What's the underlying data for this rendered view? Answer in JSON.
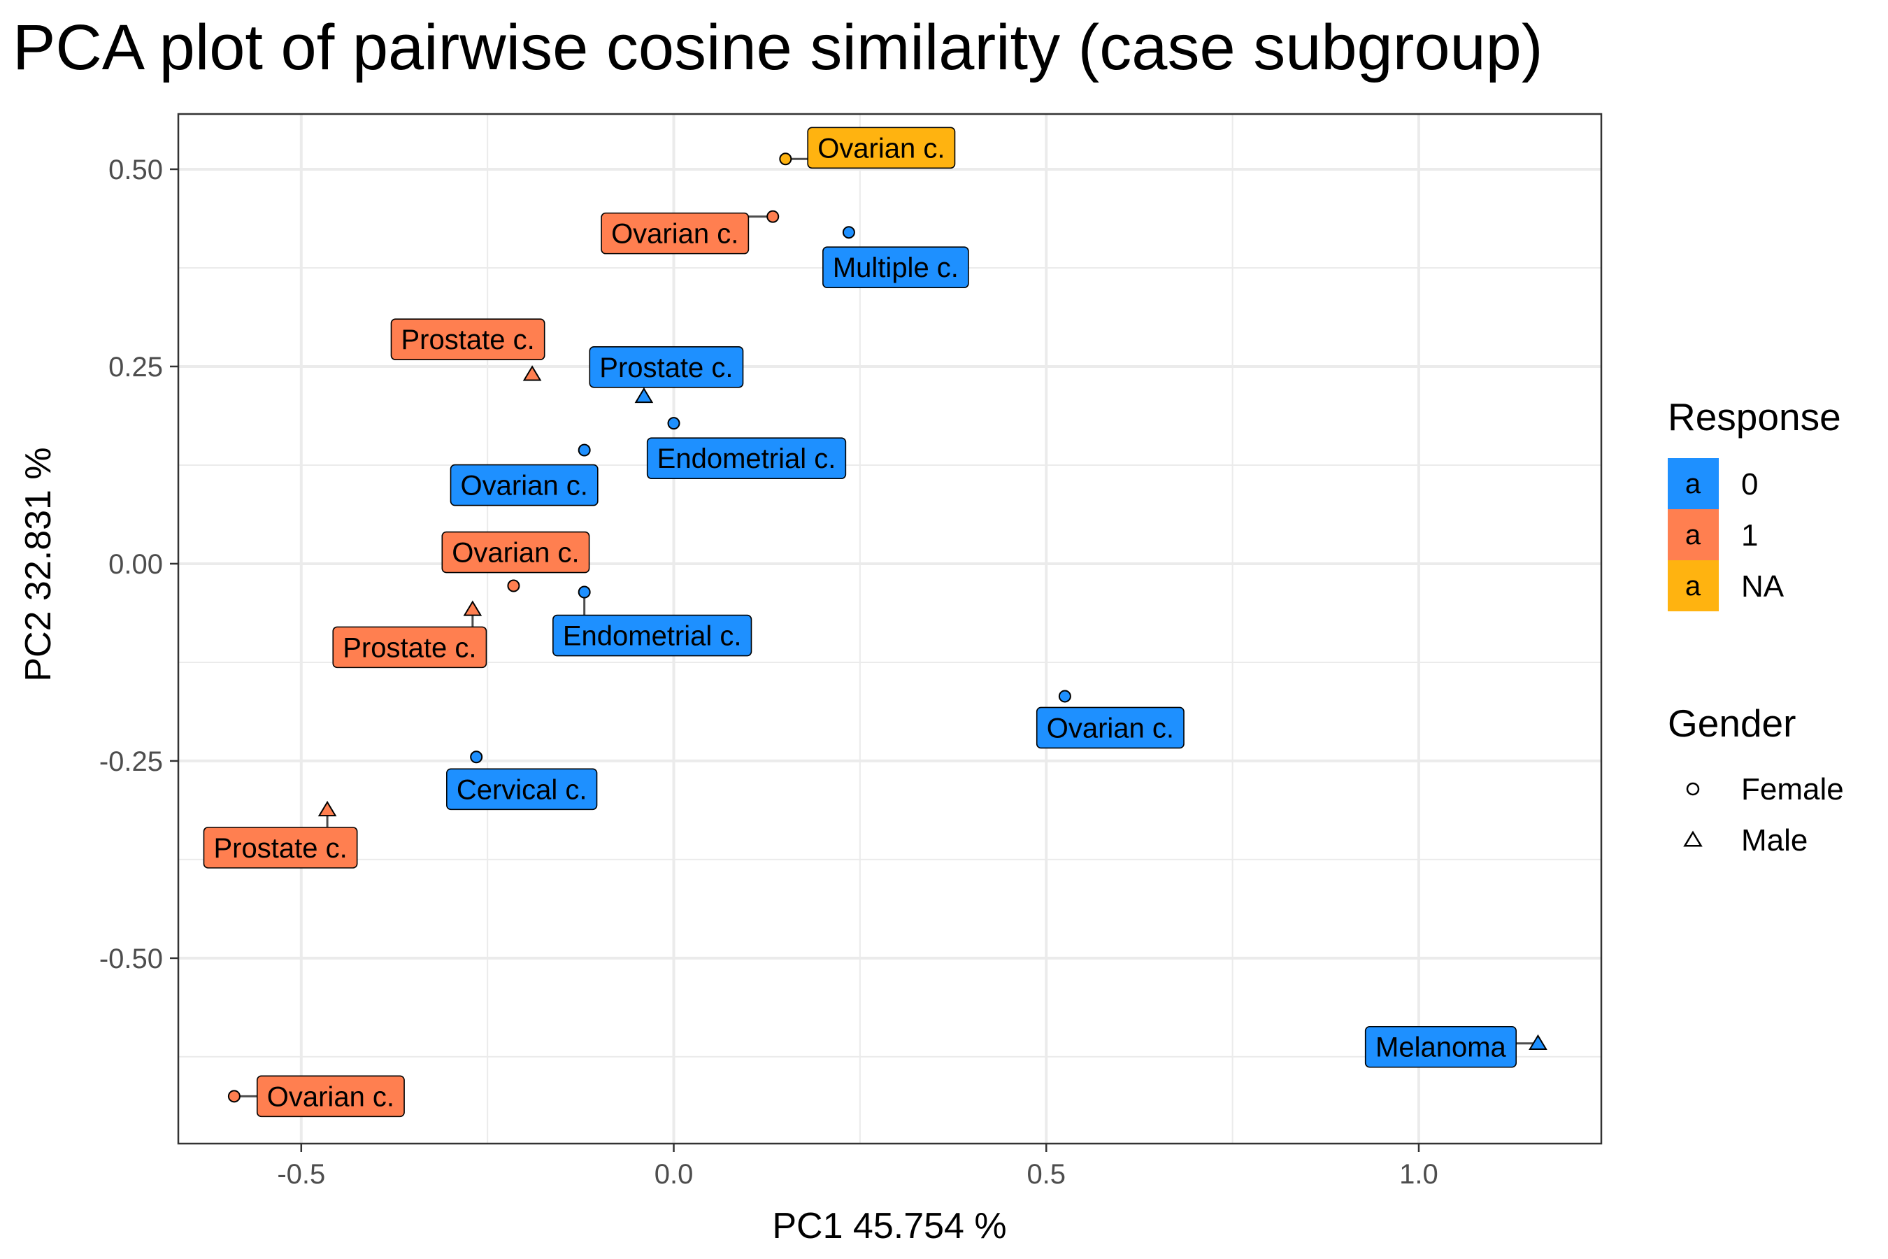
{
  "title": "PCA plot of pairwise cosine similarity (case subgroup)",
  "chart_data": {
    "type": "scatter",
    "title": "PCA plot of pairwise cosine similarity (case subgroup)",
    "xlabel": "PC1 45.754 %",
    "ylabel": "PC2 32.831 %",
    "xlim": [
      -0.665,
      1.245
    ],
    "ylim": [
      -0.735,
      0.57
    ],
    "x_ticks": [
      -0.5,
      0.0,
      0.5,
      1.0
    ],
    "x_tick_labels": [
      "-0.5",
      "0.0",
      "0.5",
      "1.0"
    ],
    "y_ticks": [
      0.5,
      0.25,
      0.0,
      -0.25,
      -0.5
    ],
    "y_tick_labels": [
      "0.50",
      "0.25",
      "0.00",
      "-0.25",
      "-0.50"
    ],
    "grid": true,
    "legend_position": "right",
    "colors": {
      "0": "#1e90ff",
      "1": "#ff7f50",
      "NA": "#ffb310"
    },
    "points": [
      {
        "x": 0.15,
        "y": 0.513,
        "label": "Ovarian c.",
        "response": "NA",
        "gender": "Female"
      },
      {
        "x": 0.133,
        "y": 0.44,
        "label": "Ovarian c.",
        "response": "1",
        "gender": "Female"
      },
      {
        "x": 0.235,
        "y": 0.42,
        "label": "Multiple c.",
        "response": "0",
        "gender": "Female"
      },
      {
        "x": -0.19,
        "y": 0.24,
        "label": "Prostate c.",
        "response": "1",
        "gender": "Male"
      },
      {
        "x": -0.04,
        "y": 0.212,
        "label": "Prostate c.",
        "response": "0",
        "gender": "Male"
      },
      {
        "x": 0.0,
        "y": 0.178,
        "label": "Endometrial c.",
        "response": "0",
        "gender": "Female"
      },
      {
        "x": -0.12,
        "y": 0.144,
        "label": "Ovarian c.",
        "response": "0",
        "gender": "Female"
      },
      {
        "x": -0.215,
        "y": -0.028,
        "label": "Ovarian c.",
        "response": "1",
        "gender": "Female"
      },
      {
        "x": -0.27,
        "y": -0.058,
        "label": "Prostate c.",
        "response": "1",
        "gender": "Male"
      },
      {
        "x": -0.12,
        "y": -0.036,
        "label": "Endometrial c.",
        "response": "0",
        "gender": "Female"
      },
      {
        "x": 0.525,
        "y": -0.168,
        "label": "Ovarian c.",
        "response": "0",
        "gender": "Female"
      },
      {
        "x": -0.265,
        "y": -0.245,
        "label": "Cervical c.",
        "response": "0",
        "gender": "Female"
      },
      {
        "x": -0.465,
        "y": -0.312,
        "label": "Prostate c.",
        "response": "1",
        "gender": "Male"
      },
      {
        "x": 1.16,
        "y": -0.608,
        "label": "Melanoma",
        "response": "0",
        "gender": "Male"
      },
      {
        "x": -0.59,
        "y": -0.675,
        "label": "Ovarian c.",
        "response": "1",
        "gender": "Female"
      }
    ],
    "legend": {
      "response": {
        "title": "Response",
        "key_glyph": "a",
        "items": [
          {
            "label": "0",
            "color": "#1e90ff"
          },
          {
            "label": "1",
            "color": "#ff7f50"
          },
          {
            "label": "NA",
            "color": "#ffb310"
          }
        ]
      },
      "gender": {
        "title": "Gender",
        "items": [
          {
            "label": "Female",
            "shape": "circle"
          },
          {
            "label": "Male",
            "shape": "triangle"
          }
        ]
      }
    }
  }
}
